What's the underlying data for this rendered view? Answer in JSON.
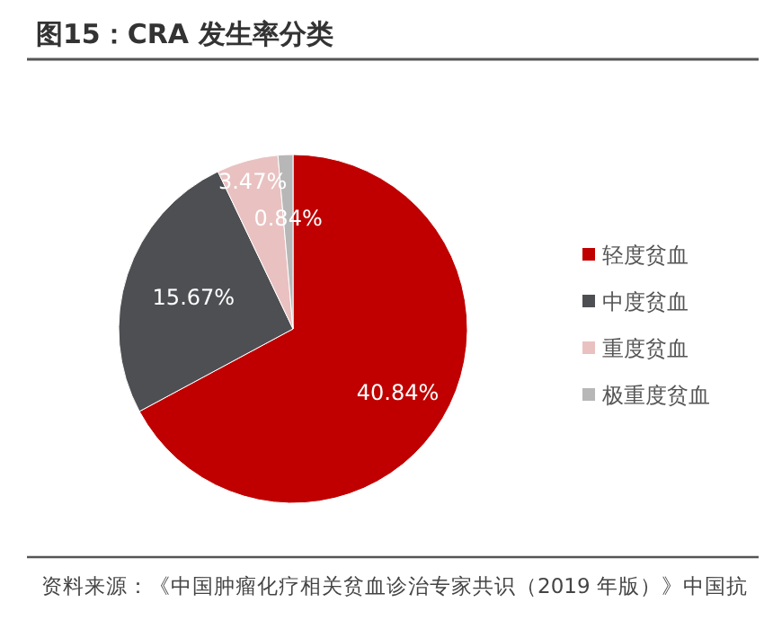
{
  "chart_data": {
    "type": "pie",
    "title": "图15：CRA 发生率分类",
    "categories": [
      "轻度贫血",
      "中度贫血",
      "重度贫血",
      "极重度贫血"
    ],
    "values": [
      40.84,
      15.67,
      3.47,
      0.84
    ],
    "value_labels": [
      "40.84%",
      "15.67%",
      "3.47%",
      "0.84%"
    ],
    "colors": [
      "#c00000",
      "#4d4f53",
      "#e9c1c1",
      "#b7b7b7"
    ],
    "legend": "right",
    "annotations": [
      "资料来源：《中国肿瘤化疗相关贫血诊治专家共识（2019 年版）》中国抗"
    ]
  }
}
